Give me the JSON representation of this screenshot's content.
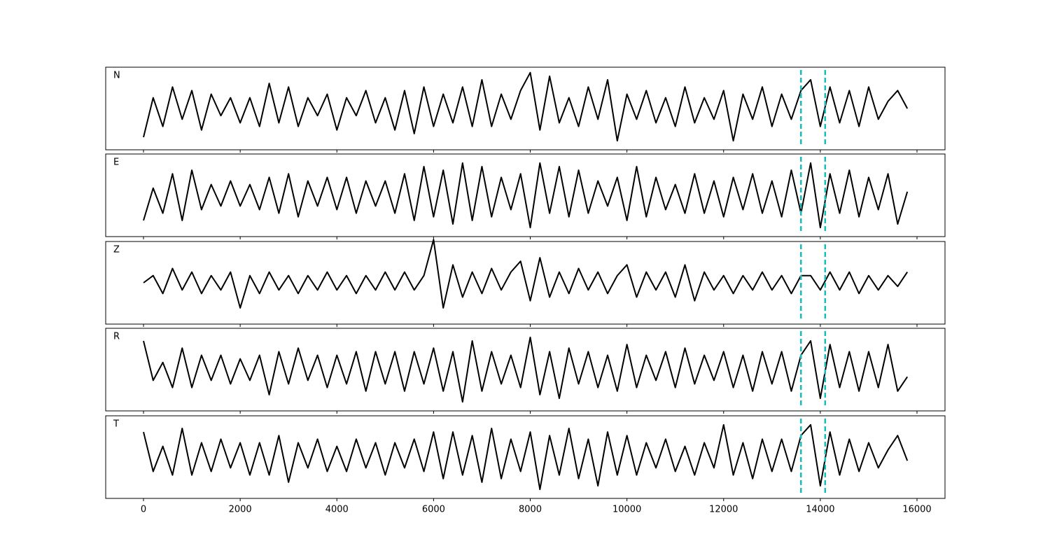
{
  "chart_data": [
    {
      "type": "line",
      "label": "N",
      "color": "#000000",
      "vline_color": "#17bebe",
      "vlines": [
        13600,
        14100
      ],
      "xlim": [
        -782,
        16579
      ],
      "ylim": [
        -1.15,
        1.15
      ],
      "xticks": [
        0,
        2000,
        4000,
        6000,
        8000,
        10000,
        12000,
        14000,
        16000
      ],
      "x": [
        0,
        200,
        400,
        600,
        800,
        1000,
        1200,
        1400,
        1600,
        1800,
        2000,
        2200,
        2400,
        2600,
        2800,
        3000,
        3200,
        3400,
        3600,
        3800,
        4000,
        4200,
        4400,
        4600,
        4800,
        5000,
        5200,
        5400,
        5600,
        5800,
        6000,
        6200,
        6400,
        6600,
        6800,
        7000,
        7200,
        7400,
        7600,
        7800,
        8000,
        8200,
        8400,
        8600,
        8800,
        9000,
        9200,
        9400,
        9600,
        9800,
        10000,
        10200,
        10400,
        10600,
        10800,
        11000,
        11200,
        11400,
        11600,
        11800,
        12000,
        12200,
        12400,
        12600,
        12800,
        13000,
        13200,
        13400,
        13600,
        13800,
        14000,
        14200,
        14400,
        14600,
        14800,
        15000,
        15200,
        15400,
        15600,
        15800
      ],
      "values": [
        -0.8,
        0.3,
        -0.5,
        0.6,
        -0.3,
        0.5,
        -0.6,
        0.4,
        -0.2,
        0.3,
        -0.4,
        0.3,
        -0.5,
        0.7,
        -0.4,
        0.6,
        -0.5,
        0.3,
        -0.2,
        0.4,
        -0.6,
        0.3,
        -0.2,
        0.5,
        -0.4,
        0.3,
        -0.6,
        0.5,
        -0.7,
        0.6,
        -0.5,
        0.4,
        -0.4,
        0.6,
        -0.5,
        0.8,
        -0.5,
        0.4,
        -0.3,
        0.5,
        1.0,
        -0.6,
        0.9,
        -0.4,
        0.3,
        -0.5,
        0.6,
        -0.3,
        0.8,
        -0.9,
        0.4,
        -0.3,
        0.5,
        -0.4,
        0.3,
        -0.5,
        0.6,
        -0.4,
        0.3,
        -0.3,
        0.5,
        -0.9,
        0.4,
        -0.3,
        0.6,
        -0.5,
        0.4,
        -0.3,
        0.5,
        0.8,
        -0.5,
        0.6,
        -0.4,
        0.5,
        -0.5,
        0.6,
        -0.3,
        0.2,
        0.5,
        0.0
      ]
    },
    {
      "type": "line",
      "label": "E",
      "color": "#000000",
      "vline_color": "#17bebe",
      "vlines": [
        13600,
        14100
      ],
      "xlim": [
        -782,
        16579
      ],
      "ylim": [
        -1.15,
        1.15
      ],
      "xticks": [
        0,
        2000,
        4000,
        6000,
        8000,
        10000,
        12000,
        14000,
        16000
      ],
      "x": [
        0,
        200,
        400,
        600,
        800,
        1000,
        1200,
        1400,
        1600,
        1800,
        2000,
        2200,
        2400,
        2600,
        2800,
        3000,
        3200,
        3400,
        3600,
        3800,
        4000,
        4200,
        4400,
        4600,
        4800,
        5000,
        5200,
        5400,
        5600,
        5800,
        6000,
        6200,
        6400,
        6600,
        6800,
        7000,
        7200,
        7400,
        7600,
        7800,
        8000,
        8200,
        8400,
        8600,
        8800,
        9000,
        9200,
        9400,
        9600,
        9800,
        10000,
        10200,
        10400,
        10600,
        10800,
        11000,
        11200,
        11400,
        11600,
        11800,
        12000,
        12200,
        12400,
        12600,
        12800,
        13000,
        13200,
        13400,
        13600,
        13800,
        14000,
        14200,
        14400,
        14600,
        14800,
        15000,
        15200,
        15400,
        15600,
        15800
      ],
      "values": [
        -0.7,
        0.2,
        -0.5,
        0.6,
        -0.7,
        0.7,
        -0.4,
        0.3,
        -0.3,
        0.4,
        -0.3,
        0.3,
        -0.4,
        0.5,
        -0.5,
        0.6,
        -0.6,
        0.4,
        -0.3,
        0.5,
        -0.4,
        0.5,
        -0.5,
        0.4,
        -0.3,
        0.4,
        -0.5,
        0.6,
        -0.7,
        0.8,
        -0.6,
        0.7,
        -0.8,
        0.9,
        -0.7,
        0.8,
        -0.6,
        0.5,
        -0.4,
        0.6,
        -0.9,
        0.9,
        -0.5,
        0.8,
        -0.6,
        0.7,
        -0.5,
        0.4,
        -0.3,
        0.5,
        -0.7,
        0.8,
        -0.6,
        0.5,
        -0.4,
        0.3,
        -0.5,
        0.6,
        -0.5,
        0.4,
        -0.6,
        0.5,
        -0.4,
        0.6,
        -0.5,
        0.4,
        -0.6,
        0.7,
        -0.5,
        0.9,
        -0.9,
        0.6,
        -0.5,
        0.7,
        -0.6,
        0.5,
        -0.4,
        0.6,
        -0.8,
        0.1
      ]
    },
    {
      "type": "line",
      "label": "Z",
      "color": "#000000",
      "vline_color": "#17bebe",
      "vlines": [
        13600,
        14100
      ],
      "xlim": [
        -782,
        16579
      ],
      "ylim": [
        -1.15,
        1.15
      ],
      "xticks": [
        0,
        2000,
        4000,
        6000,
        8000,
        10000,
        12000,
        14000,
        16000
      ],
      "x": [
        0,
        200,
        400,
        600,
        800,
        1000,
        1200,
        1400,
        1600,
        1800,
        2000,
        2200,
        2400,
        2600,
        2800,
        3000,
        3200,
        3400,
        3600,
        3800,
        4000,
        4200,
        4400,
        4600,
        4800,
        5000,
        5200,
        5400,
        5600,
        5800,
        6000,
        6200,
        6400,
        6600,
        6800,
        7000,
        7200,
        7400,
        7600,
        7800,
        8000,
        8200,
        8400,
        8600,
        8800,
        9000,
        9200,
        9400,
        9600,
        9800,
        10000,
        10200,
        10400,
        10600,
        10800,
        11000,
        11200,
        11400,
        11600,
        11800,
        12000,
        12200,
        12400,
        12600,
        12800,
        13000,
        13200,
        13400,
        13600,
        13800,
        14000,
        14200,
        14400,
        14600,
        14800,
        15000,
        15200,
        15400,
        15600,
        15800
      ],
      "values": [
        0.0,
        0.2,
        -0.3,
        0.4,
        -0.2,
        0.3,
        -0.3,
        0.2,
        -0.2,
        0.3,
        -0.7,
        0.2,
        -0.3,
        0.3,
        -0.2,
        0.2,
        -0.3,
        0.2,
        -0.2,
        0.3,
        -0.2,
        0.2,
        -0.3,
        0.2,
        -0.2,
        0.3,
        -0.2,
        0.3,
        -0.2,
        0.2,
        1.2,
        -0.7,
        0.5,
        -0.4,
        0.3,
        -0.3,
        0.4,
        -0.2,
        0.3,
        0.6,
        -0.5,
        0.7,
        -0.4,
        0.3,
        -0.3,
        0.4,
        -0.2,
        0.3,
        -0.3,
        0.2,
        0.5,
        -0.4,
        0.3,
        -0.2,
        0.3,
        -0.4,
        0.5,
        -0.5,
        0.3,
        -0.2,
        0.2,
        -0.3,
        0.2,
        -0.2,
        0.3,
        -0.2,
        0.2,
        -0.3,
        0.2,
        0.2,
        -0.2,
        0.3,
        -0.2,
        0.3,
        -0.3,
        0.2,
        -0.2,
        0.2,
        -0.1,
        0.3
      ]
    },
    {
      "type": "line",
      "label": "R",
      "color": "#000000",
      "vline_color": "#17bebe",
      "vlines": [
        13600,
        14100
      ],
      "xlim": [
        -782,
        16579
      ],
      "ylim": [
        -1.15,
        1.15
      ],
      "xticks": [
        0,
        2000,
        4000,
        6000,
        8000,
        10000,
        12000,
        14000,
        16000
      ],
      "x": [
        0,
        200,
        400,
        600,
        800,
        1000,
        1200,
        1400,
        1600,
        1800,
        2000,
        2200,
        2400,
        2600,
        2800,
        3000,
        3200,
        3400,
        3600,
        3800,
        4000,
        4200,
        4400,
        4600,
        4800,
        5000,
        5200,
        5400,
        5600,
        5800,
        6000,
        6200,
        6400,
        6600,
        6800,
        7000,
        7200,
        7400,
        7600,
        7800,
        8000,
        8200,
        8400,
        8600,
        8800,
        9000,
        9200,
        9400,
        9600,
        9800,
        10000,
        10200,
        10400,
        10600,
        10800,
        11000,
        11200,
        11400,
        11600,
        11800,
        12000,
        12200,
        12400,
        12600,
        12800,
        13000,
        13200,
        13400,
        13600,
        13800,
        14000,
        14200,
        14400,
        14600,
        14800,
        15000,
        15200,
        15400,
        15600,
        15800
      ],
      "values": [
        0.8,
        -0.3,
        0.2,
        -0.5,
        0.6,
        -0.5,
        0.4,
        -0.3,
        0.4,
        -0.4,
        0.3,
        -0.3,
        0.4,
        -0.7,
        0.5,
        -0.4,
        0.6,
        -0.3,
        0.4,
        -0.5,
        0.4,
        -0.4,
        0.5,
        -0.6,
        0.5,
        -0.4,
        0.5,
        -0.6,
        0.5,
        -0.4,
        0.6,
        -0.6,
        0.5,
        -0.9,
        0.8,
        -0.6,
        0.5,
        -0.4,
        0.4,
        -0.5,
        0.9,
        -0.7,
        0.5,
        -0.8,
        0.6,
        -0.4,
        0.5,
        -0.5,
        0.4,
        -0.6,
        0.7,
        -0.5,
        0.4,
        -0.3,
        0.5,
        -0.5,
        0.6,
        -0.4,
        0.4,
        -0.3,
        0.5,
        -0.5,
        0.4,
        -0.6,
        0.5,
        -0.4,
        0.5,
        -0.6,
        0.4,
        0.8,
        -0.8,
        0.7,
        -0.5,
        0.5,
        -0.6,
        0.5,
        -0.5,
        0.7,
        -0.6,
        -0.2
      ]
    },
    {
      "type": "line",
      "label": "T",
      "color": "#000000",
      "vline_color": "#17bebe",
      "vlines": [
        13600,
        14100
      ],
      "xlim": [
        -782,
        16579
      ],
      "ylim": [
        -1.15,
        1.15
      ],
      "xticks": [
        0,
        2000,
        4000,
        6000,
        8000,
        10000,
        12000,
        14000,
        16000
      ],
      "x": [
        0,
        200,
        400,
        600,
        800,
        1000,
        1200,
        1400,
        1600,
        1800,
        2000,
        2200,
        2400,
        2600,
        2800,
        3000,
        3200,
        3400,
        3600,
        3800,
        4000,
        4200,
        4400,
        4600,
        4800,
        5000,
        5200,
        5400,
        5600,
        5800,
        6000,
        6200,
        6400,
        6600,
        6800,
        7000,
        7200,
        7400,
        7600,
        7800,
        8000,
        8200,
        8400,
        8600,
        8800,
        9000,
        9200,
        9400,
        9600,
        9800,
        10000,
        10200,
        10400,
        10600,
        10800,
        11000,
        11200,
        11400,
        11600,
        11800,
        12000,
        12200,
        12400,
        12600,
        12800,
        13000,
        13200,
        13400,
        13600,
        13800,
        14000,
        14200,
        14400,
        14600,
        14800,
        15000,
        15200,
        15400,
        15600,
        15800
      ],
      "values": [
        0.7,
        -0.4,
        0.3,
        -0.5,
        0.8,
        -0.5,
        0.4,
        -0.4,
        0.5,
        -0.3,
        0.4,
        -0.5,
        0.4,
        -0.5,
        0.6,
        -0.7,
        0.4,
        -0.3,
        0.5,
        -0.4,
        0.3,
        -0.4,
        0.5,
        -0.3,
        0.4,
        -0.5,
        0.4,
        -0.3,
        0.5,
        -0.4,
        0.7,
        -0.6,
        0.7,
        -0.5,
        0.6,
        -0.7,
        0.8,
        -0.6,
        0.5,
        -0.4,
        0.7,
        -0.9,
        0.6,
        -0.5,
        0.8,
        -0.6,
        0.5,
        -0.8,
        0.7,
        -0.5,
        0.6,
        -0.5,
        0.4,
        -0.3,
        0.5,
        -0.4,
        0.3,
        -0.5,
        0.4,
        -0.3,
        0.9,
        -0.5,
        0.4,
        -0.6,
        0.5,
        -0.4,
        0.5,
        -0.4,
        0.6,
        0.9,
        -0.8,
        0.7,
        -0.5,
        0.5,
        -0.4,
        0.4,
        -0.3,
        0.2,
        0.6,
        -0.1
      ]
    }
  ]
}
